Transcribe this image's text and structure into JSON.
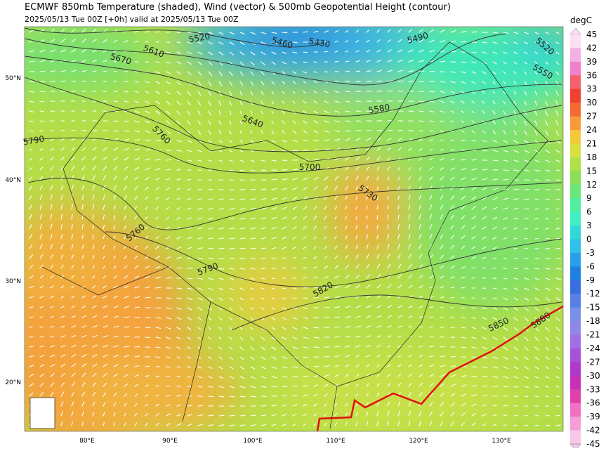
{
  "header": {
    "title": "ECMWF 850mb Temperature (shaded), Wind (vector) & 500mb Geopotential Height (contour)",
    "subtitle": "2025/05/13 Tue 00Z [+0h] valid at 2025/05/13 Tue 00Z"
  },
  "map": {
    "lat_labels": [
      "50°N",
      "40°N",
      "30°N",
      "20°N"
    ],
    "lon_labels": [
      "80°E",
      "90°E",
      "100°E",
      "110°E",
      "120°E",
      "130°E"
    ],
    "contour_labels": [
      "5520",
      "5460",
      "5430",
      "5490",
      "5520",
      "5550",
      "5610",
      "5670",
      "5580",
      "5640",
      "5760",
      "5790",
      "5700",
      "5730",
      "5760",
      "5790",
      "5820",
      "5850",
      "5880"
    ]
  },
  "colorbar": {
    "unit": "degC",
    "labels": [
      45,
      42,
      39,
      36,
      33,
      30,
      27,
      24,
      21,
      18,
      15,
      12,
      9,
      6,
      3,
      0,
      -3,
      -6,
      -9,
      -12,
      -15,
      -18,
      -21,
      -24,
      -27,
      -30,
      -33,
      -36,
      -39,
      -42,
      -45
    ]
  }
}
